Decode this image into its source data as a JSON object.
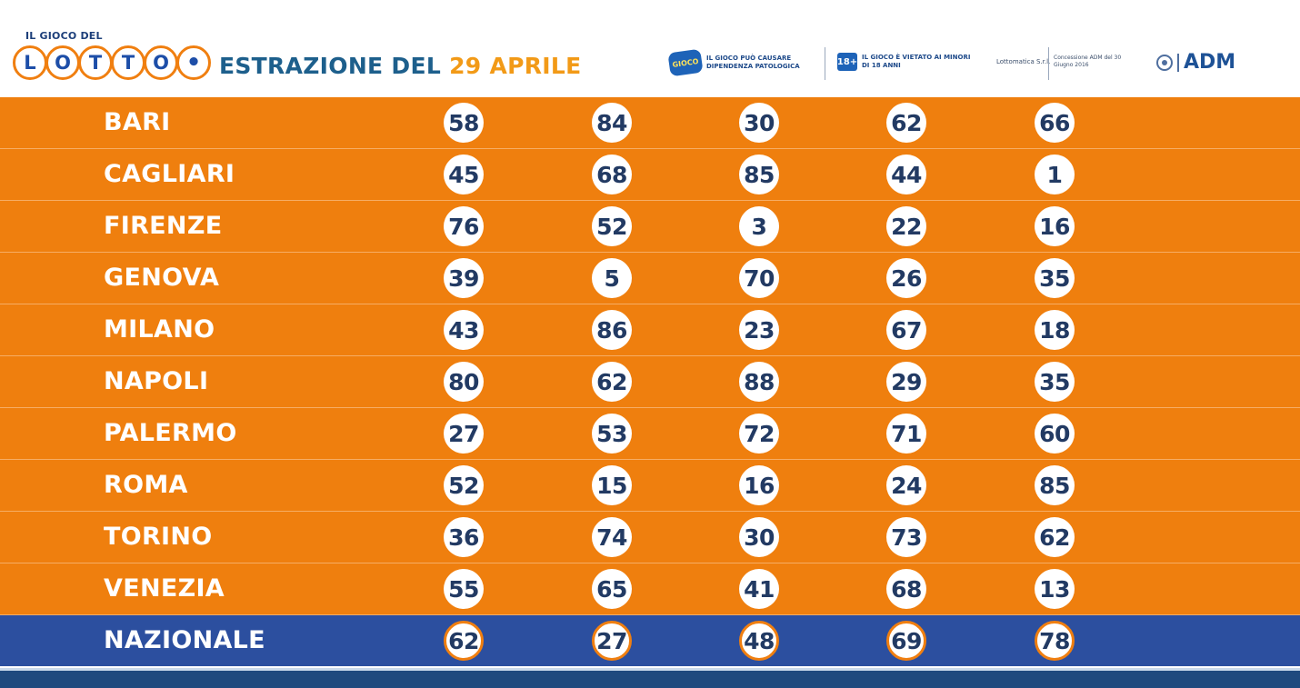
{
  "header": {
    "logo_small_text": "IL GIOCO DEL",
    "logo_letters": [
      "L",
      "O",
      "T",
      "T",
      "O",
      "•"
    ],
    "title_prefix": "ESTRAZIONE DEL ",
    "title_date": "29 APRILE",
    "warning_1_badge": "GIOCO",
    "warning_1_text": "IL GIOCO PUÒ CAUSARE DIPENDENZA PATOLOGICA",
    "age_badge": "18+",
    "warning_2_text": "IL GIOCO È VIETATO AI MINORI DI 18 ANNI",
    "lotterie_text": "Lottomatica S.r.l.",
    "concessione_text": "Concessione ADM del 30 Giugno 2016",
    "adm_text": "ADM"
  },
  "colors": {
    "row_orange": "#ef7f0e",
    "nazionale_blue": "#2c4f9f",
    "number_text": "#223a63",
    "title_blue": "#1d5f8c",
    "title_date_orange": "#f29a17"
  },
  "results": [
    {
      "city": "BARI",
      "numbers": [
        "58",
        "84",
        "30",
        "62",
        "66"
      ]
    },
    {
      "city": "CAGLIARI",
      "numbers": [
        "45",
        "68",
        "85",
        "44",
        "1"
      ]
    },
    {
      "city": "FIRENZE",
      "numbers": [
        "76",
        "52",
        "3",
        "22",
        "16"
      ]
    },
    {
      "city": "GENOVA",
      "numbers": [
        "39",
        "5",
        "70",
        "26",
        "35"
      ]
    },
    {
      "city": "MILANO",
      "numbers": [
        "43",
        "86",
        "23",
        "67",
        "18"
      ]
    },
    {
      "city": "NAPOLI",
      "numbers": [
        "80",
        "62",
        "88",
        "29",
        "35"
      ]
    },
    {
      "city": "PALERMO",
      "numbers": [
        "27",
        "53",
        "72",
        "71",
        "60"
      ]
    },
    {
      "city": "ROMA",
      "numbers": [
        "52",
        "15",
        "16",
        "24",
        "85"
      ]
    },
    {
      "city": "TORINO",
      "numbers": [
        "36",
        "74",
        "30",
        "73",
        "62"
      ]
    },
    {
      "city": "VENEZIA",
      "numbers": [
        "55",
        "65",
        "41",
        "68",
        "13"
      ]
    },
    {
      "city": "NAZIONALE",
      "numbers": [
        "62",
        "27",
        "48",
        "69",
        "78"
      ]
    }
  ]
}
